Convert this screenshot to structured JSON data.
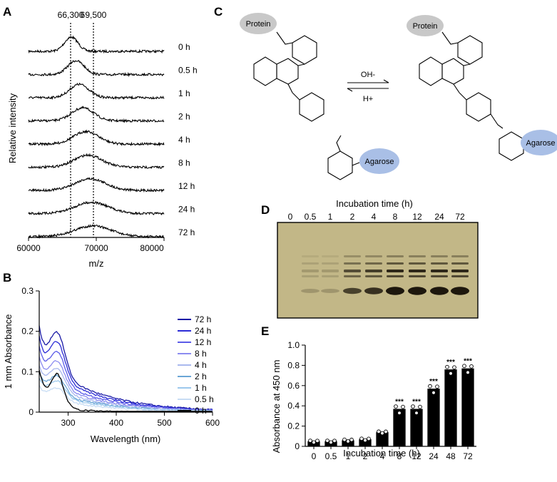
{
  "panels": [
    "A",
    "B",
    "C",
    "D",
    "E"
  ],
  "panelA": {
    "type": "spectra",
    "xlabel": "m/z",
    "ylabel": "Relative intensity",
    "xticks": [
      "60000",
      "70000",
      "80000"
    ],
    "xlim": [
      60000,
      80000
    ],
    "reference_lines": [
      66300,
      69500
    ],
    "reference_labels": [
      "66,300",
      "69,500"
    ],
    "series_labels": [
      "0 h",
      "0.5 h",
      "1 h",
      "2 h",
      "4 h",
      "8 h",
      "12 h",
      "24 h",
      "72 h"
    ],
    "peak_mz": [
      66300,
      67000,
      67500,
      68000,
      68500,
      68800,
      69100,
      69300,
      69500
    ]
  },
  "panelB": {
    "type": "line",
    "xlabel": "Wavelength (nm)",
    "ylabel": "1 mm Absorbance",
    "xticks": [
      "300",
      "400",
      "500",
      "600"
    ],
    "yticks": [
      "0",
      "0.1",
      "0.2",
      "0.3"
    ],
    "xlim": [
      240,
      600
    ],
    "ylim": [
      0,
      0.3
    ],
    "legend": [
      "72 h",
      "24 h",
      "12 h",
      "8 h",
      "4 h",
      "2 h",
      "1 h",
      "0.5 h",
      "0 h"
    ],
    "colors": [
      "#1a1aa6",
      "#2b2bd6",
      "#5b5be8",
      "#8c8cf0",
      "#a9b8ee",
      "#6aa6d6",
      "#9cc8ec",
      "#c7dcf4",
      "#000000"
    ],
    "series_amp": [
      0.165,
      0.145,
      0.125,
      0.105,
      0.09,
      0.075,
      0.065,
      0.05,
      0.075
    ]
  },
  "panelC": {
    "labels": [
      "Protein",
      "Protein",
      "Agarose",
      "Agarose",
      "OH-",
      "H+"
    ]
  },
  "panelD": {
    "title": "Incubation time (h)",
    "lanes": [
      "0",
      "0.5",
      "1",
      "2",
      "4",
      "8",
      "12",
      "24",
      "72"
    ],
    "band_strength": [
      0.0,
      0.2,
      0.2,
      0.7,
      0.8,
      0.95,
      0.95,
      0.95,
      0.95
    ]
  },
  "chart_data": {
    "type": "bar",
    "categories": [
      "0",
      "0.5",
      "1",
      "2",
      "4",
      "8",
      "12",
      "24",
      "48",
      "72"
    ],
    "values": [
      0.05,
      0.05,
      0.06,
      0.07,
      0.14,
      0.37,
      0.37,
      0.57,
      0.76,
      0.77
    ],
    "significance": [
      "",
      "",
      "",
      "",
      "",
      "***",
      "***",
      "***",
      "***",
      "***"
    ],
    "xlabel": "Incubation time (h)",
    "ylabel": "Absorbance at 450 nm",
    "yticks": [
      "0",
      "0.2",
      "0.4",
      "0.6",
      "0.8",
      "1.0"
    ],
    "ylim": [
      0,
      1.0
    ]
  }
}
